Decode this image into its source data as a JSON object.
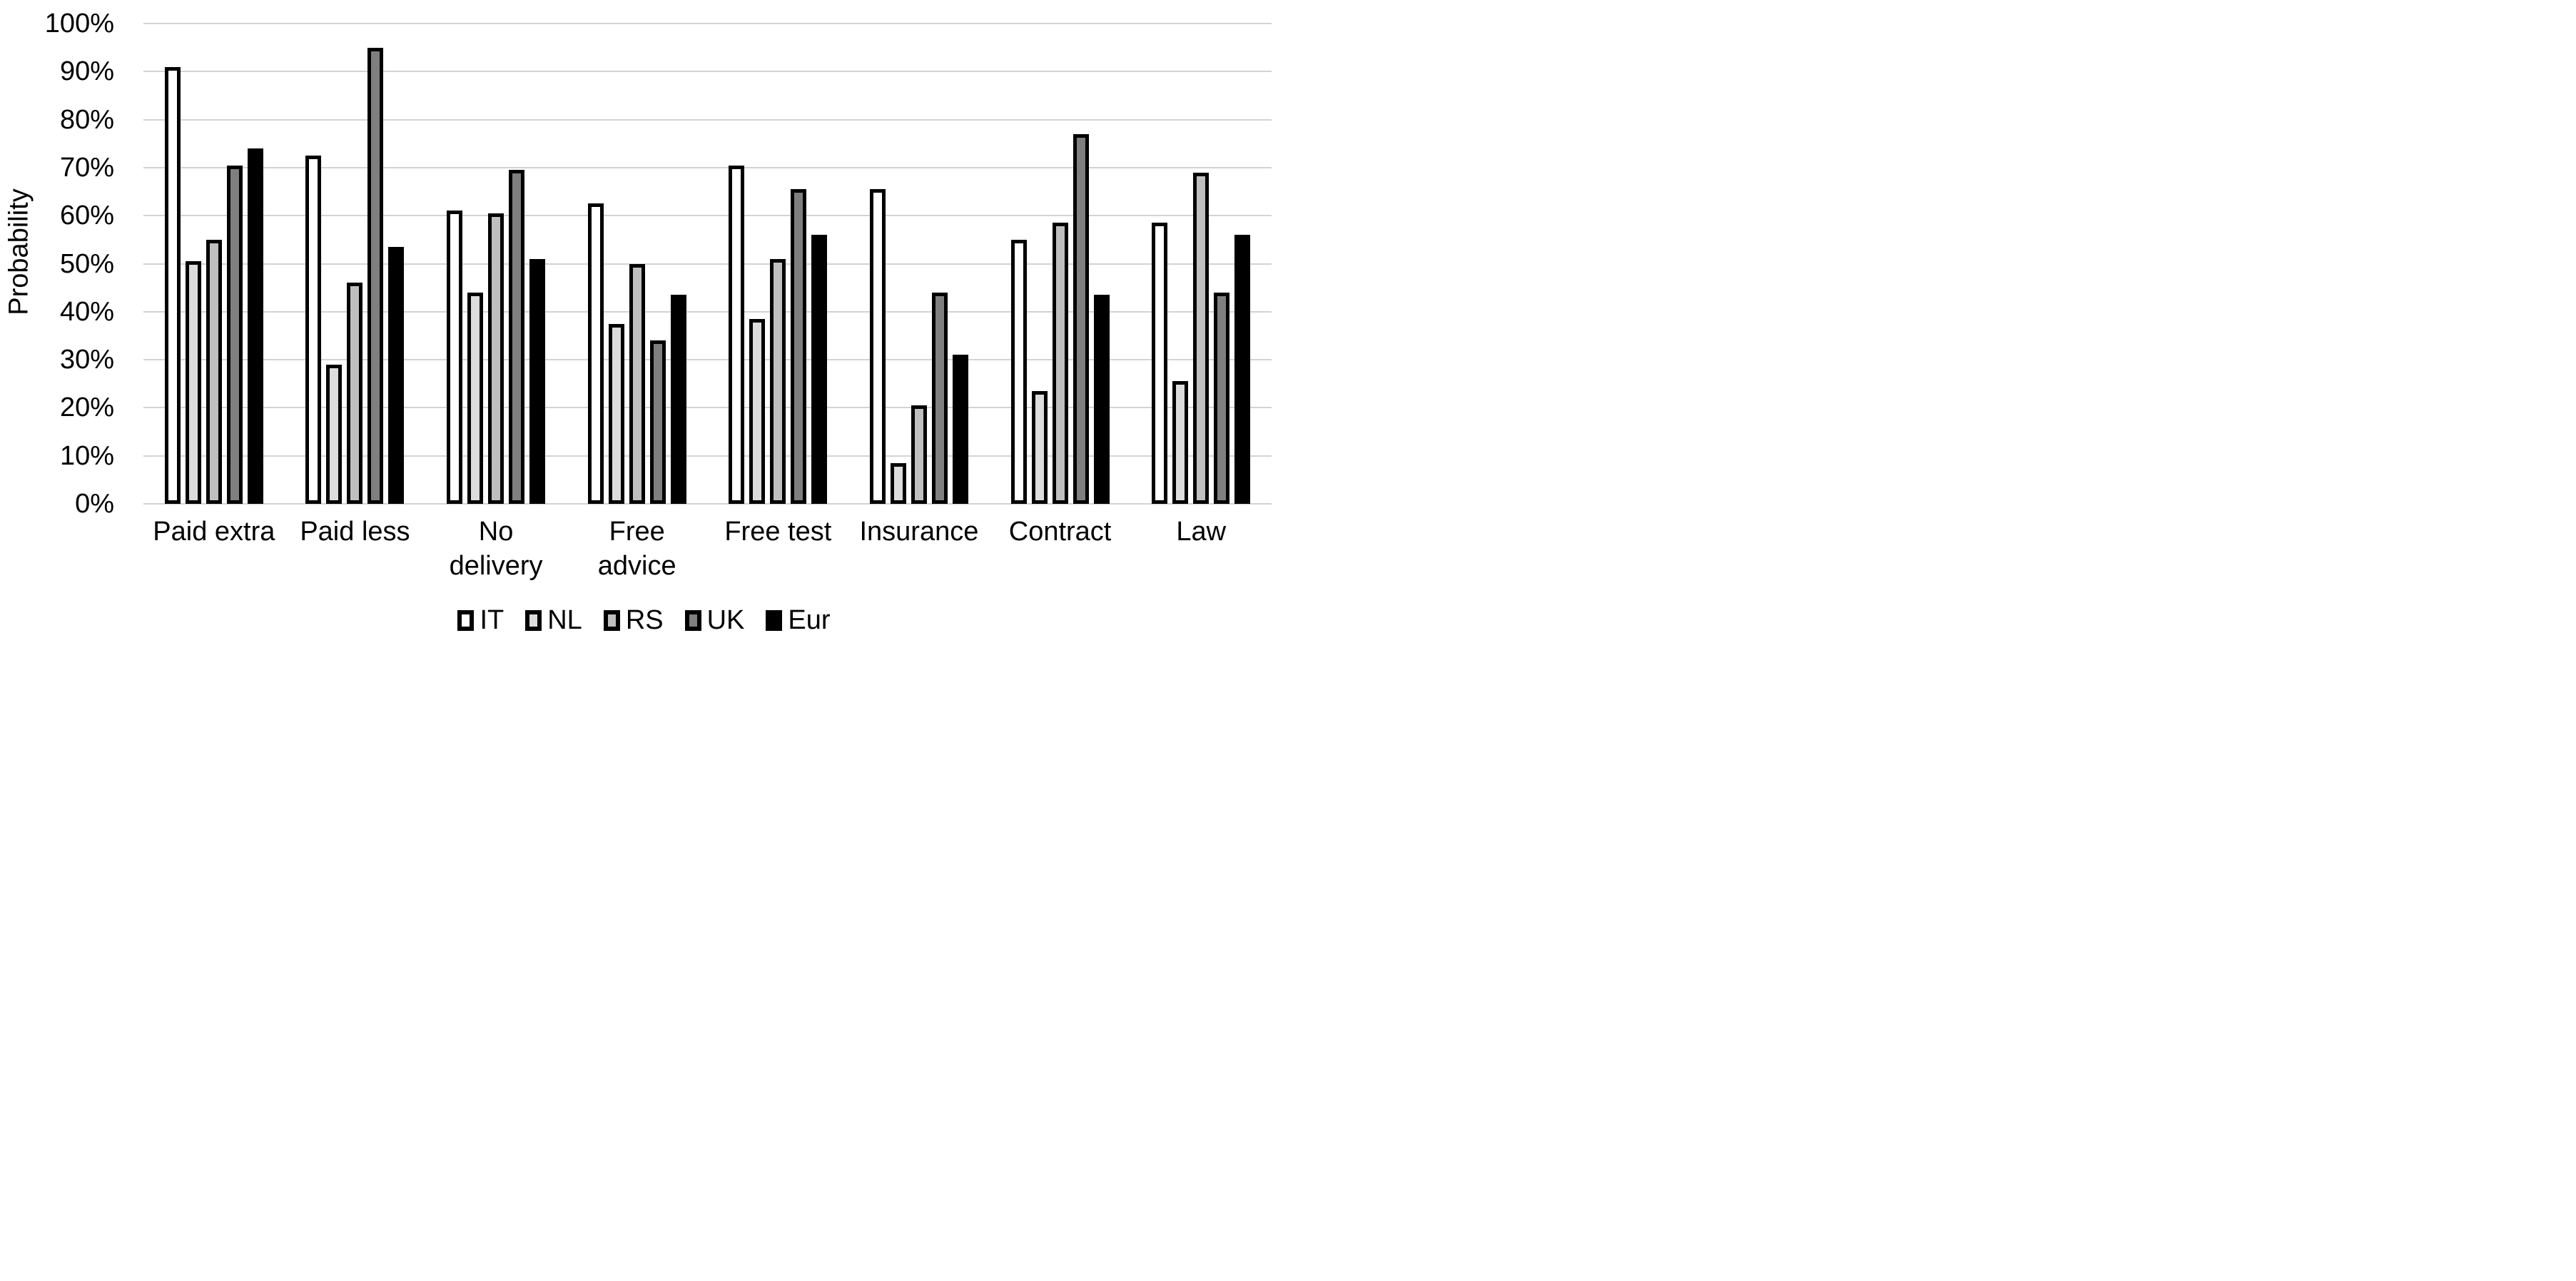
{
  "chart_data": {
    "type": "bar",
    "title": "",
    "xlabel": "",
    "ylabel": "Probability",
    "ylim": [
      0,
      100
    ],
    "grid": "horizontal",
    "gridline_color": "#d3d3d3",
    "legend_position": "bottom",
    "bar_border_color": "#000000",
    "yticks": [
      {
        "value": 100,
        "label": "100%"
      },
      {
        "value": 90,
        "label": "90%"
      },
      {
        "value": 80,
        "label": "80%"
      },
      {
        "value": 70,
        "label": "70%"
      },
      {
        "value": 60,
        "label": "60%"
      },
      {
        "value": 50,
        "label": "50%"
      },
      {
        "value": 40,
        "label": "40%"
      },
      {
        "value": 30,
        "label": "30%"
      },
      {
        "value": 20,
        "label": "20%"
      },
      {
        "value": 10,
        "label": "10%"
      },
      {
        "value": 0,
        "label": "0%"
      }
    ],
    "categories": [
      {
        "label": "Paid extra"
      },
      {
        "label": "Paid less"
      },
      {
        "label": "No\ndelivery"
      },
      {
        "label": "Free\nadvice"
      },
      {
        "label": "Free test"
      },
      {
        "label": "Insurance"
      },
      {
        "label": "Contract"
      },
      {
        "label": "Law"
      }
    ],
    "series": [
      {
        "name": "IT",
        "color": "#ffffff",
        "values": [
          91,
          72.5,
          61,
          62.5,
          70.5,
          65.5,
          55,
          58.5
        ]
      },
      {
        "name": "NL",
        "color": "#dcdcdc",
        "values": [
          50.5,
          29,
          44,
          37.5,
          38.5,
          8.5,
          23.5,
          25.5
        ]
      },
      {
        "name": "RS",
        "color": "#bfbfbf",
        "values": [
          55,
          46,
          60.5,
          50,
          51,
          20.5,
          58.5,
          69
        ]
      },
      {
        "name": "UK",
        "color": "#7f7f7f",
        "values": [
          70.5,
          95,
          69.5,
          34,
          65.5,
          44,
          77,
          44
        ]
      },
      {
        "name": "Eur",
        "color": "#000000",
        "values": [
          74,
          53.5,
          51,
          43.5,
          56,
          31,
          43.5,
          56
        ]
      }
    ]
  }
}
